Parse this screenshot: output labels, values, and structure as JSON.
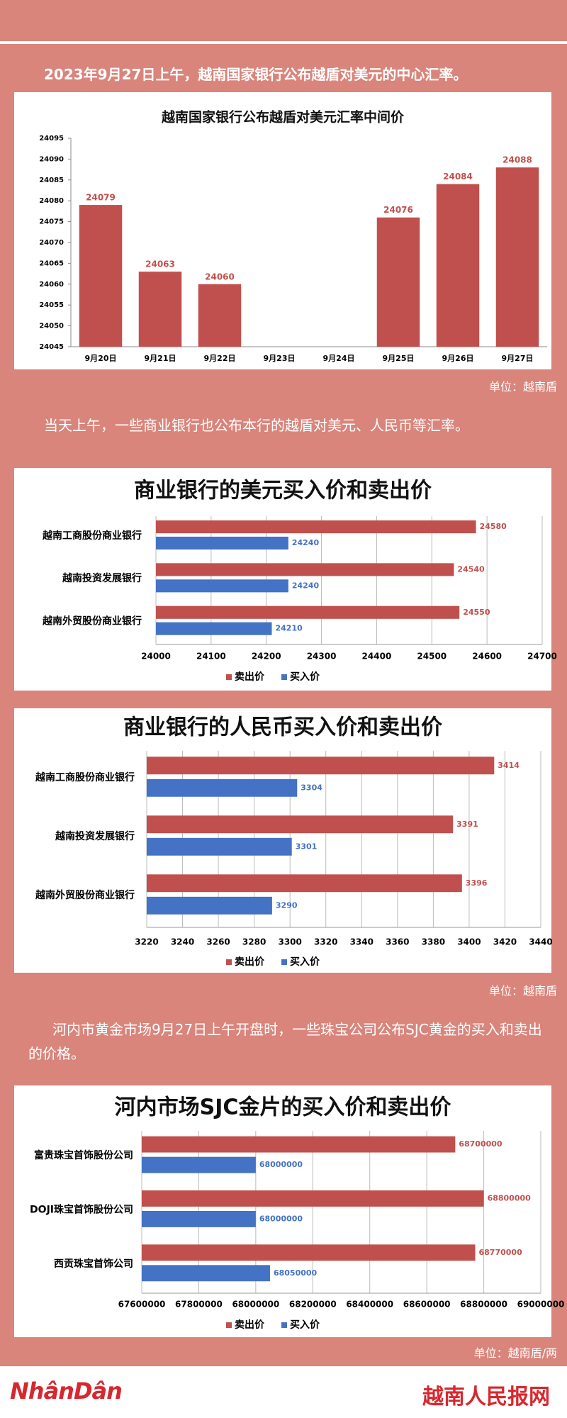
{
  "texts": {
    "intro_1": "2023年9月27日上午，越南国家银行公布越盾对美元的中心汇率。",
    "unit_1": "单位：越南盾",
    "intro_2": "当天上午，一些商业银行也公布本行的越盾对美元、人民币等汇率。",
    "unit_2": "单位：越南盾",
    "intro_3": "河内市黄金市场9月27日上午开盘时，一些珠宝公司公布SJC黄金的买入和卖出的价格。",
    "unit_3": "单位：越南盾/两"
  },
  "footer": {
    "logo": "NhânDân",
    "site": "越南人民报网"
  },
  "chart_data": [
    {
      "type": "bar",
      "title": "越南国家银行公布越盾对美元汇率中间价",
      "categories": [
        "9月20日",
        "9月21日",
        "9月22日",
        "9月23日",
        "9月24日",
        "9月25日",
        "9月26日",
        "9月27日"
      ],
      "values": [
        24079,
        24063,
        24060,
        null,
        null,
        24076,
        24084,
        24088
      ],
      "color": "#c0504d",
      "ylim": [
        24045,
        24095
      ],
      "yticks": [
        24045,
        24050,
        24055,
        24060,
        24065,
        24070,
        24075,
        24080,
        24085,
        24090,
        24095
      ],
      "grid": false
    },
    {
      "type": "hbar",
      "title": "商业银行的美元买入价和卖出价",
      "categories": [
        "越南工商股份商业银行",
        "越南投资发展银行",
        "越南外贸股份商业银行"
      ],
      "series": [
        {
          "name": "卖出价",
          "color": "#c0504d",
          "values": [
            24580,
            24540,
            24550
          ]
        },
        {
          "name": "买入价",
          "color": "#4472c4",
          "values": [
            24240,
            24240,
            24210
          ]
        }
      ],
      "xlim": [
        24000,
        24700
      ],
      "xticks": [
        24000,
        24100,
        24200,
        24300,
        24400,
        24500,
        24600,
        24700
      ],
      "grid": true,
      "legend": "bottom"
    },
    {
      "type": "hbar",
      "title": "商业银行的人民币买入价和卖出价",
      "categories": [
        "越南工商股份商业银行",
        "越南投资发展银行",
        "越南外贸股份商业银行"
      ],
      "series": [
        {
          "name": "卖出价",
          "color": "#c0504d",
          "values": [
            3414,
            3391,
            3396
          ]
        },
        {
          "name": "买入价",
          "color": "#4472c4",
          "values": [
            3304,
            3301,
            3290
          ]
        }
      ],
      "xlim": [
        3220,
        3440
      ],
      "xticks": [
        3220,
        3240,
        3260,
        3280,
        3300,
        3320,
        3340,
        3360,
        3380,
        3400,
        3420,
        3440
      ],
      "grid": true,
      "legend": "bottom"
    },
    {
      "type": "hbar",
      "title": "河内市场SJC金片的买入价和卖出价",
      "categories": [
        "富贵珠宝首饰股份公司",
        "DOJI珠宝首饰股份公司",
        "西贡珠宝首饰公司"
      ],
      "series": [
        {
          "name": "卖出价",
          "color": "#c0504d",
          "values": [
            68700000,
            68800000,
            68770000
          ]
        },
        {
          "name": "买入价",
          "color": "#4472c4",
          "values": [
            68000000,
            68000000,
            68050000
          ]
        }
      ],
      "xlim": [
        67600000,
        69000000
      ],
      "xticks": [
        67600000,
        67800000,
        68000000,
        68200000,
        68400000,
        68600000,
        68800000,
        69000000
      ],
      "grid": true,
      "legend": "bottom"
    }
  ]
}
